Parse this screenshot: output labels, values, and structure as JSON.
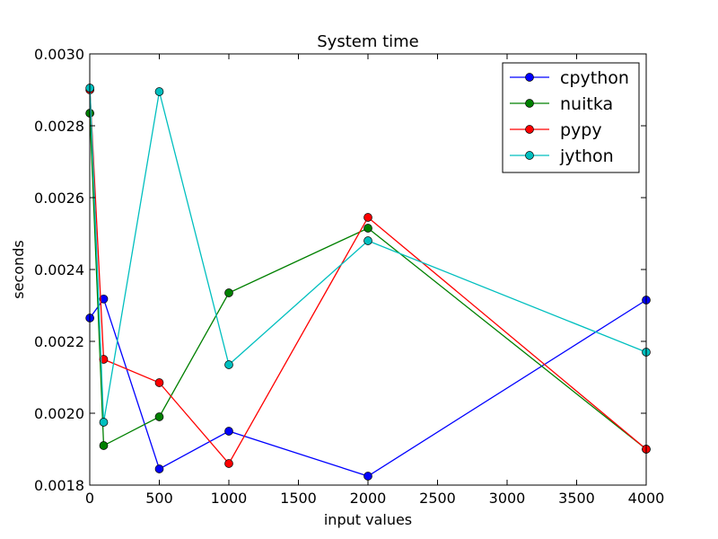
{
  "chart_data": {
    "type": "line",
    "title": "System time",
    "xlabel": "input values",
    "ylabel": "seconds",
    "xlim": [
      0,
      4000
    ],
    "ylim": [
      0.0018,
      0.003
    ],
    "x": [
      1,
      100,
      500,
      1000,
      2000,
      4000
    ],
    "xticks": [
      0,
      500,
      1000,
      1500,
      2000,
      2500,
      3000,
      3500,
      4000
    ],
    "xtick_labels": [
      "0",
      "500",
      "1000",
      "1500",
      "2000",
      "2500",
      "3000",
      "3500",
      "4000"
    ],
    "yticks": [
      0.0018,
      0.002,
      0.0022,
      0.0024,
      0.0026,
      0.0028,
      0.003
    ],
    "ytick_labels": [
      "0.0018",
      "0.0020",
      "0.0022",
      "0.0024",
      "0.0026",
      "0.0028",
      "0.0030"
    ],
    "grid": false,
    "legend_position": "top-right",
    "series": [
      {
        "name": "cpython",
        "color": "#0000ff",
        "values": [
          0.002265,
          0.002318,
          0.001845,
          0.00195,
          0.001825,
          0.002315
        ]
      },
      {
        "name": "nuitka",
        "color": "#008000",
        "values": [
          0.002835,
          0.00191,
          0.00199,
          0.002335,
          0.002515,
          0.0019
        ]
      },
      {
        "name": "pypy",
        "color": "#ff0000",
        "values": [
          0.0029,
          0.00215,
          0.002085,
          0.00186,
          0.002545,
          0.0019
        ]
      },
      {
        "name": "jython",
        "color": "#00bfbf",
        "values": [
          0.002905,
          0.001975,
          0.002895,
          0.002135,
          0.00248,
          0.00217
        ]
      }
    ]
  }
}
